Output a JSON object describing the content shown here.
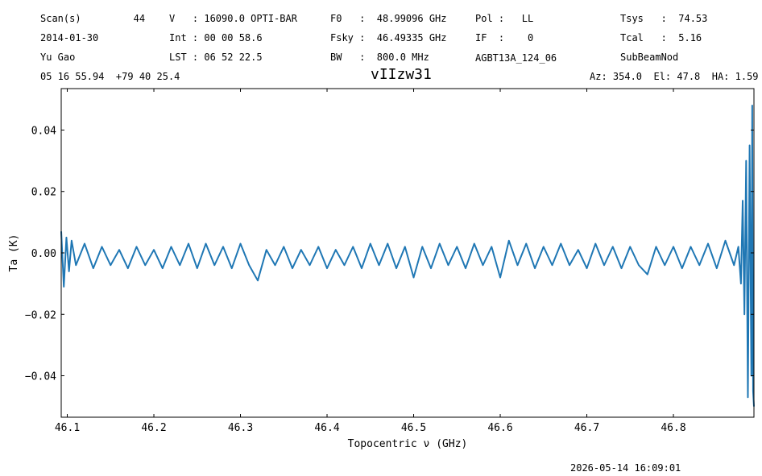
{
  "header": {
    "scan": "Scan(s)         44",
    "date": "2014-01-30",
    "observer": "Yu Gao",
    "coords": "05 16 55.94  +79 40 25.4",
    "velocity": "V   : 16090.0 OPTI-BAR",
    "int": "Int : 00 00 58.6",
    "lst": "LST : 06 52 22.5",
    "f0": "F0   :  48.99096 GHz",
    "fsky": "Fsky :  46.49335 GHz",
    "bw": "BW   :  800.0 MHz",
    "pol": "Pol :   LL",
    "if": "IF  :    0",
    "project": "AGBT13A_124_06",
    "tsys": "Tsys   :  74.53",
    "tcal": "Tcal   :  5.16",
    "procedure": "SubBeamNod",
    "azel": "Az: 354.0  El: 47.8  HA: 1.59"
  },
  "timestamp": "2026-05-14 16:09:01",
  "chart_data": {
    "type": "line",
    "title": "vIIzw31",
    "xlabel": "Topocentric ν (GHz)",
    "ylabel": "Ta (K)",
    "xlim": [
      46.093,
      46.893
    ],
    "ylim": [
      -0.0535,
      0.0535
    ],
    "xticks": [
      "46.1",
      "46.2",
      "46.3",
      "46.4",
      "46.5",
      "46.6",
      "46.7",
      "46.8"
    ],
    "yticks": [
      "0.04",
      "0.02",
      "0.00",
      "−0.02",
      "−0.04"
    ],
    "ytick_values": [
      0.04,
      0.02,
      0.0,
      -0.02,
      -0.04
    ],
    "xtick_values": [
      46.1,
      46.2,
      46.3,
      46.4,
      46.5,
      46.6,
      46.7,
      46.8
    ],
    "grid": false,
    "color": "#1f77b4",
    "series": [
      {
        "x": [
          46.093,
          46.096,
          46.099,
          46.102,
          46.105,
          46.11,
          46.12,
          46.13,
          46.14,
          46.15,
          46.16,
          46.17,
          46.18,
          46.19,
          46.2,
          46.21,
          46.22,
          46.23,
          46.24,
          46.25,
          46.26,
          46.27,
          46.28,
          46.29,
          46.3,
          46.31,
          46.32,
          46.33,
          46.34,
          46.35,
          46.36,
          46.37,
          46.38,
          46.39,
          46.4,
          46.41,
          46.42,
          46.43,
          46.44,
          46.45,
          46.46,
          46.47,
          46.48,
          46.49,
          46.5,
          46.51,
          46.52,
          46.53,
          46.54,
          46.55,
          46.56,
          46.57,
          46.58,
          46.59,
          46.6,
          46.61,
          46.62,
          46.63,
          46.64,
          46.65,
          46.66,
          46.67,
          46.68,
          46.69,
          46.7,
          46.71,
          46.72,
          46.73,
          46.74,
          46.75,
          46.76,
          46.77,
          46.78,
          46.79,
          46.8,
          46.81,
          46.82,
          46.83,
          46.84,
          46.85,
          46.86,
          46.87,
          46.875,
          46.878,
          46.88,
          46.882,
          46.884,
          46.886,
          46.888,
          46.89,
          46.891,
          46.892,
          46.893
        ],
        "y": [
          0.007,
          -0.011,
          0.005,
          -0.006,
          0.004,
          -0.004,
          0.003,
          -0.005,
          0.002,
          -0.004,
          0.001,
          -0.005,
          0.002,
          -0.004,
          0.001,
          -0.005,
          0.002,
          -0.004,
          0.003,
          -0.005,
          0.003,
          -0.004,
          0.002,
          -0.005,
          0.003,
          -0.004,
          -0.009,
          0.001,
          -0.004,
          0.002,
          -0.005,
          0.001,
          -0.004,
          0.002,
          -0.005,
          0.001,
          -0.004,
          0.002,
          -0.005,
          0.003,
          -0.004,
          0.003,
          -0.005,
          0.002,
          -0.008,
          0.002,
          -0.005,
          0.003,
          -0.004,
          0.002,
          -0.005,
          0.003,
          -0.004,
          0.002,
          -0.008,
          0.004,
          -0.004,
          0.003,
          -0.005,
          0.002,
          -0.004,
          0.003,
          -0.004,
          0.001,
          -0.005,
          0.003,
          -0.004,
          0.002,
          -0.005,
          0.002,
          -0.004,
          -0.007,
          0.002,
          -0.004,
          0.002,
          -0.005,
          0.002,
          -0.004,
          0.003,
          -0.005,
          0.004,
          -0.004,
          0.002,
          -0.01,
          0.017,
          -0.02,
          0.03,
          -0.047,
          0.035,
          -0.04,
          0.048,
          -0.045,
          -0.05
        ]
      }
    ]
  }
}
